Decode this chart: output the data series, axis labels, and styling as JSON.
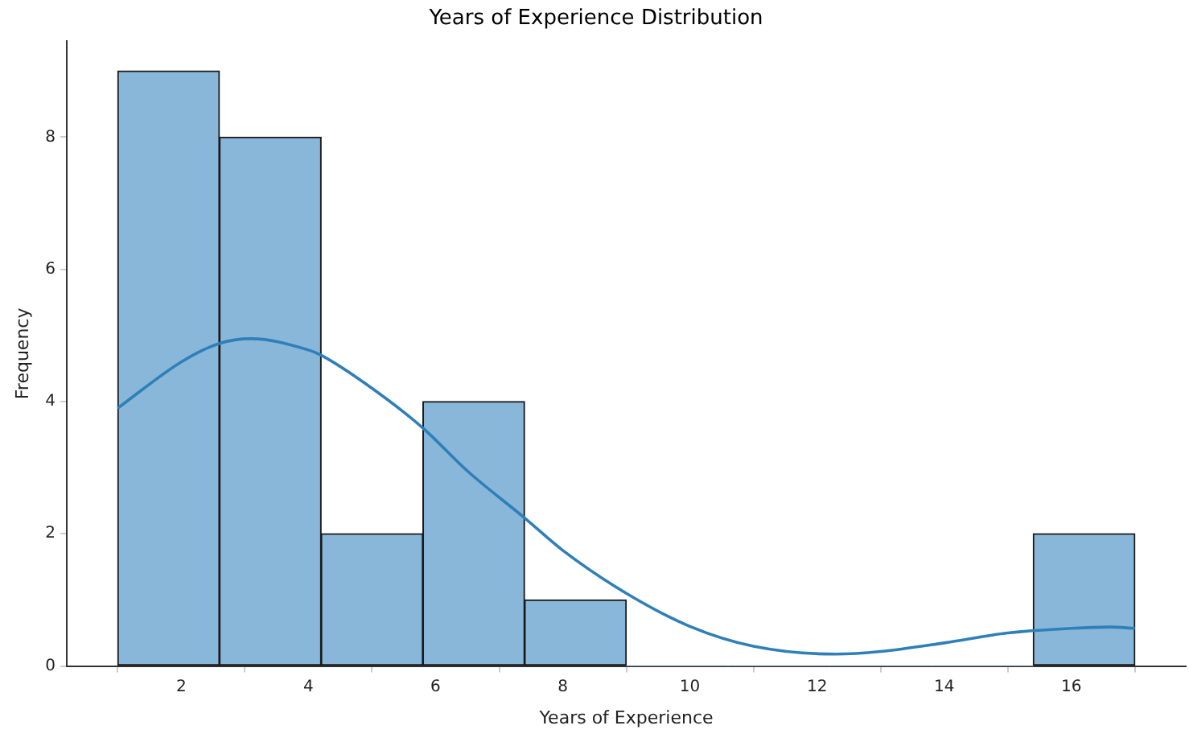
{
  "chart_data": {
    "type": "histogram",
    "title": "Years of Experience Distribution",
    "xlabel": "Years of Experience",
    "ylabel": "Frequency",
    "xlim": [
      0.2,
      17.8
    ],
    "xticks": [
      2,
      4,
      6,
      8,
      10,
      12,
      14,
      16
    ],
    "ylim": [
      0,
      9.45
    ],
    "yticks": [
      0,
      2,
      4,
      6,
      8
    ],
    "grid": false,
    "legend": false,
    "series": [
      {
        "color": "#89b7da",
        "bins": [
          1,
          2.6,
          4.2,
          5.8,
          7.4,
          9,
          10.6,
          12.2,
          13.8,
          15.4,
          17
        ],
        "values": [
          9,
          8,
          2,
          4,
          1,
          0,
          0,
          0,
          0,
          2
        ]
      },
      {
        "type": "line",
        "color": "#2f7fb8",
        "x": [
          1,
          2,
          2.6,
          3.1,
          4,
          4.2,
          5,
          5.8,
          6.5,
          7.4,
          8,
          9,
          10,
          11,
          12.3,
          13,
          14,
          15,
          16,
          16.6,
          17
        ],
        "values": [
          3.9,
          4.6,
          4.88,
          4.95,
          4.78,
          4.7,
          4.2,
          3.6,
          2.95,
          2.24,
          1.75,
          1.1,
          0.6,
          0.3,
          0.18,
          0.22,
          0.35,
          0.5,
          0.57,
          0.59,
          0.57
        ]
      }
    ]
  }
}
